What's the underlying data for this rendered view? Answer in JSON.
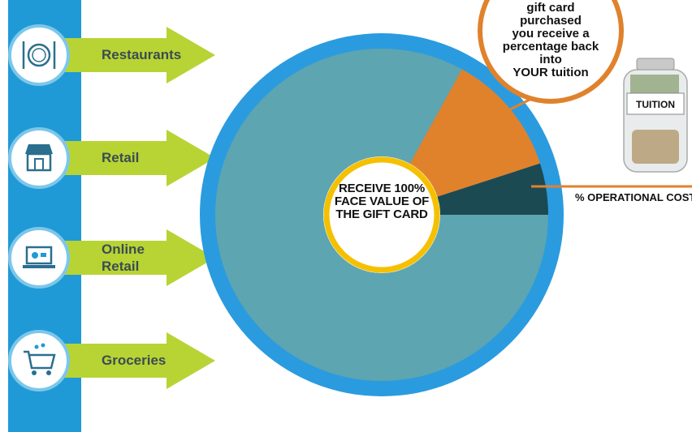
{
  "categories": [
    {
      "label": "Restaurants",
      "icon": "plate-utensils-icon"
    },
    {
      "label": "Retail",
      "icon": "storefront-icon"
    },
    {
      "label": "Online\nRetail",
      "icon": "laptop-cart-icon"
    },
    {
      "label": "Groceries",
      "icon": "shopping-cart-icon"
    }
  ],
  "pie": {
    "center_text": "RECEIVE 100%\nFACE VALUE OF\nTHE GIFT CARD",
    "slices": [
      {
        "name": "face-value",
        "percent": 83,
        "color": "#5da5b0"
      },
      {
        "name": "tuition-back",
        "percent": 12,
        "color": "#e0822c"
      },
      {
        "name": "operational-cost",
        "percent": 5,
        "color": "#1c4a52"
      }
    ],
    "ring_color": "#2b9be0",
    "center_ring_color": "#f5c000"
  },
  "callout": {
    "text": "gift card\npurchased\nyou receive a\npercentage back\ninto\nYOUR tuition"
  },
  "jar": {
    "label": "TUITION"
  },
  "operational_cost_label": "% OPERATIONAL COST",
  "colors": {
    "bar_blue": "#1f9ad6",
    "arrow_green": "#b7d434",
    "orange": "#e0822c"
  }
}
